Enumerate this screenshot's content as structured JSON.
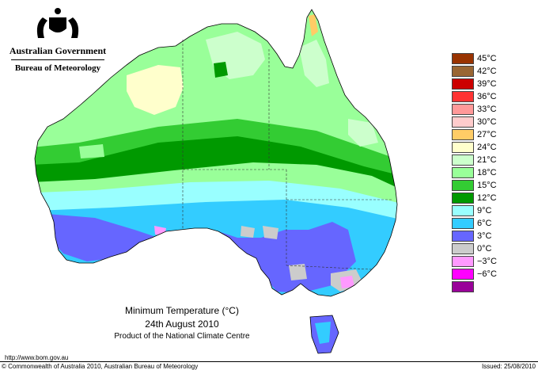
{
  "branding": {
    "government": "Australian Government",
    "bureau": "Bureau of Meteorology"
  },
  "map": {
    "title": "Minimum Temperature (°C)",
    "date": "24th August 2010",
    "product": "Product of the National Climate Centre",
    "colors": {
      "ocean": "#ffffff",
      "land_outline": "#000000",
      "state_border": "#333333"
    }
  },
  "legend": {
    "items": [
      {
        "label": "45°C",
        "color": "#993300"
      },
      {
        "label": "42°C",
        "color": "#996633"
      },
      {
        "label": "39°C",
        "color": "#cc0000"
      },
      {
        "label": "36°C",
        "color": "#ff3333"
      },
      {
        "label": "33°C",
        "color": "#ff9999"
      },
      {
        "label": "30°C",
        "color": "#ffcccc"
      },
      {
        "label": "27°C",
        "color": "#ffcc66"
      },
      {
        "label": "24°C",
        "color": "#ffffcc"
      },
      {
        "label": "21°C",
        "color": "#ccffcc"
      },
      {
        "label": "18°C",
        "color": "#99ff99"
      },
      {
        "label": "15°C",
        "color": "#33cc33"
      },
      {
        "label": "12°C",
        "color": "#009900"
      },
      {
        "label": "9°C",
        "color": "#99ffff"
      },
      {
        "label": "6°C",
        "color": "#33ccff"
      },
      {
        "label": "3°C",
        "color": "#6666ff"
      },
      {
        "label": "0°C",
        "color": "#cccccc"
      },
      {
        "label": "−3°C",
        "color": "#ff99ff"
      },
      {
        "label": "−6°C",
        "color": "#ff00ff"
      },
      {
        "label": "",
        "color": "#990099"
      }
    ]
  },
  "footer": {
    "url": "http://www.bom.gov.au",
    "copyright": "© Commonwealth of Australia 2010, Australian Bureau of Meteorology",
    "issued": "Issued: 25/08/2010"
  }
}
